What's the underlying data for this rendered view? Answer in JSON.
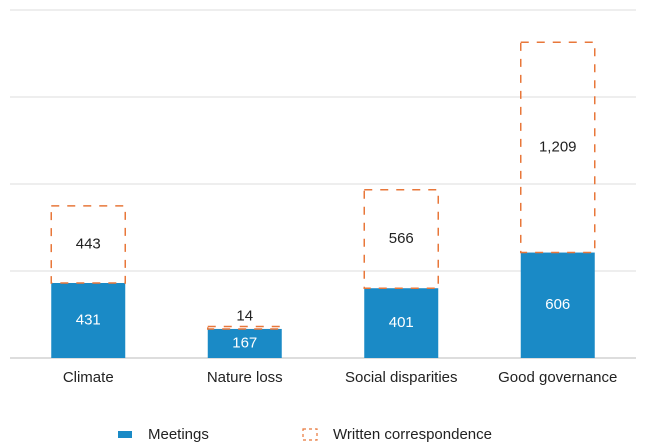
{
  "chart_data": {
    "type": "stacked_bar",
    "categories": [
      "Climate",
      "Nature loss",
      "Social disparities",
      "Good governance"
    ],
    "series": [
      {
        "name": "Meetings",
        "color": "#1a8ac6",
        "values": [
          431,
          167,
          401,
          606
        ]
      },
      {
        "name": "Written correspondence",
        "color": "#e8773a",
        "values": [
          443,
          14,
          566,
          1209
        ],
        "value_labels": [
          "443",
          "14",
          "566",
          "1,209"
        ]
      }
    ],
    "ylim": [
      0,
      2000
    ],
    "yticks": [
      0,
      500,
      1000,
      1500,
      2000
    ],
    "grid": true
  }
}
